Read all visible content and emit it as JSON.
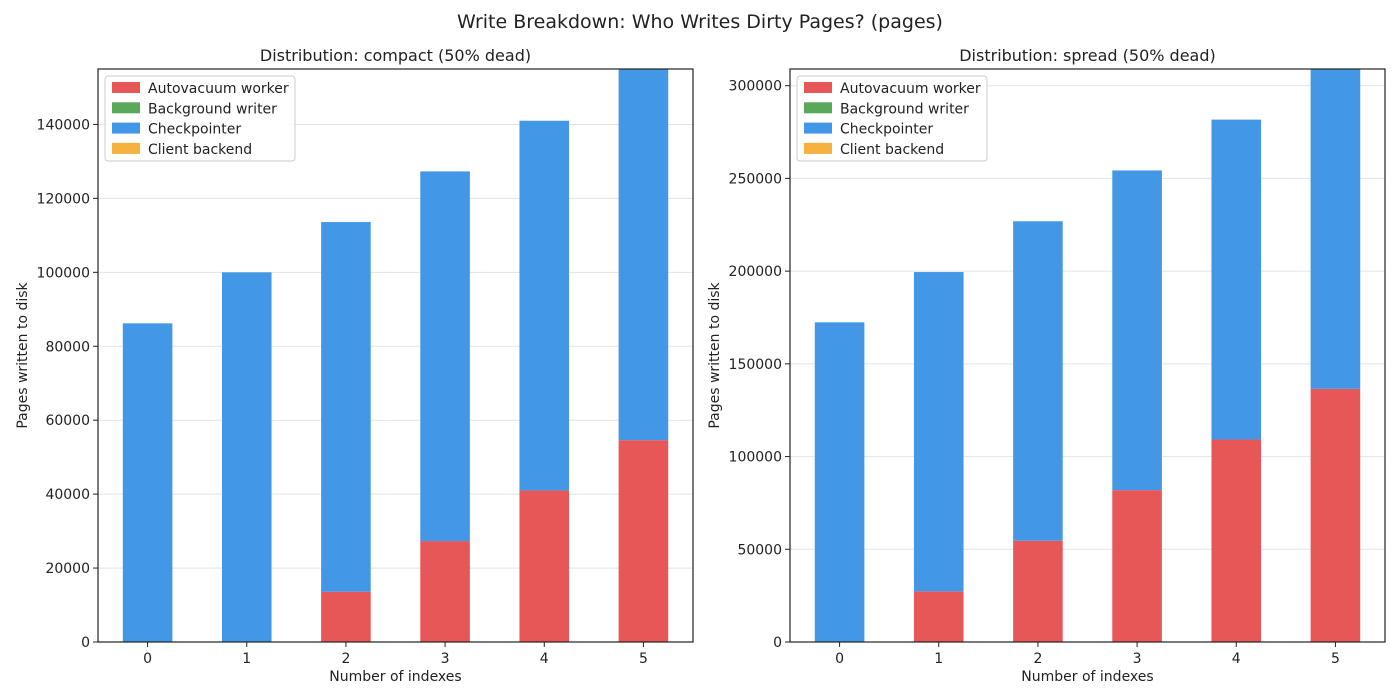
{
  "figure": {
    "title": "Write Breakdown: Who Writes Dirty Pages? (pages)"
  },
  "legend_labels": [
    "Autovacuum worker",
    "Background writer",
    "Checkpointer",
    "Client backend"
  ],
  "colors": {
    "Autovacuum worker": "#e85757",
    "Background writer": "#5aa85a",
    "Checkpointer": "#4298e6",
    "Client backend": "#f7b13e"
  },
  "chart_data": [
    {
      "type": "bar",
      "stacked": true,
      "title": "Distribution: compact (50% dead)",
      "xlabel": "Number of indexes",
      "ylabel": "Pages written to disk",
      "categories": [
        "0",
        "1",
        "2",
        "3",
        "4",
        "5"
      ],
      "ylim": [
        0,
        155000
      ],
      "yticks": [
        0,
        20000,
        40000,
        60000,
        80000,
        100000,
        120000,
        140000
      ],
      "ytick_labels": [
        "0",
        "20000",
        "40000",
        "60000",
        "80000",
        "100000",
        "120000",
        "140000"
      ],
      "grid": "y",
      "legend_position": "upper-left",
      "series": [
        {
          "name": "Autovacuum worker",
          "values": [
            0,
            0,
            13600,
            27300,
            41000,
            54600
          ]
        },
        {
          "name": "Background writer",
          "values": [
            0,
            0,
            0,
            0,
            0,
            0
          ]
        },
        {
          "name": "Checkpointer",
          "values": [
            86200,
            100000,
            100000,
            100000,
            100000,
            100700
          ]
        },
        {
          "name": "Client backend",
          "values": [
            0,
            0,
            0,
            0,
            0,
            0
          ]
        }
      ]
    },
    {
      "type": "bar",
      "stacked": true,
      "title": "Distribution: spread (50% dead)",
      "xlabel": "Number of indexes",
      "ylabel": "Pages written to disk",
      "categories": [
        "0",
        "1",
        "2",
        "3",
        "4",
        "5"
      ],
      "ylim": [
        0,
        309000
      ],
      "yticks": [
        0,
        50000,
        100000,
        150000,
        200000,
        250000,
        300000
      ],
      "ytick_labels": [
        "0",
        "50000",
        "100000",
        "150000",
        "200000",
        "250000",
        "300000"
      ],
      "grid": "y",
      "legend_position": "upper-left",
      "series": [
        {
          "name": "Autovacuum worker",
          "values": [
            0,
            27300,
            54600,
            81900,
            109200,
            136500
          ]
        },
        {
          "name": "Background writer",
          "values": [
            0,
            0,
            0,
            0,
            0,
            0
          ]
        },
        {
          "name": "Checkpointer",
          "values": [
            172400,
            172200,
            172300,
            172400,
            172500,
            173000
          ]
        },
        {
          "name": "Client backend",
          "values": [
            0,
            0,
            0,
            0,
            0,
            0
          ]
        }
      ]
    }
  ]
}
